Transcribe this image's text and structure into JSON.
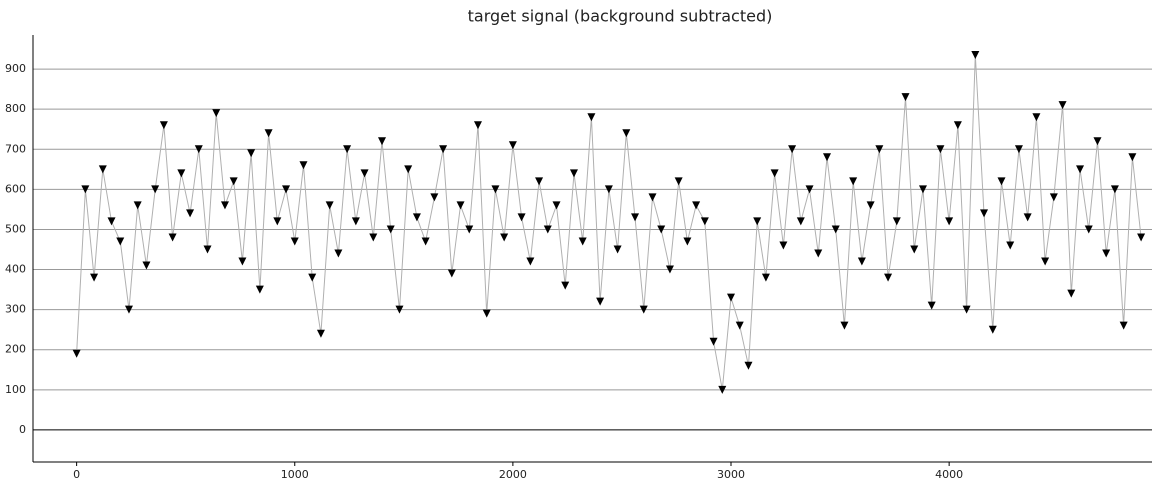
{
  "chart_data": {
    "type": "line",
    "title": "target signal (background subtracted)",
    "x": [
      0,
      40,
      80,
      120,
      160,
      200,
      240,
      280,
      320,
      360,
      400,
      440,
      480,
      520,
      560,
      600,
      640,
      680,
      720,
      760,
      800,
      840,
      880,
      920,
      960,
      1000,
      1040,
      1080,
      1120,
      1160,
      1200,
      1240,
      1280,
      1320,
      1360,
      1400,
      1440,
      1480,
      1520,
      1560,
      1600,
      1640,
      1680,
      1720,
      1760,
      1800,
      1840,
      1880,
      1920,
      1960,
      2000,
      2040,
      2080,
      2120,
      2160,
      2200,
      2240,
      2280,
      2320,
      2360,
      2400,
      2440,
      2480,
      2520,
      2560,
      2600,
      2640,
      2680,
      2720,
      2760,
      2800,
      2840,
      2880,
      2920,
      2960,
      3000,
      3040,
      3080,
      3120,
      3160,
      3200,
      3240,
      3280,
      3320,
      3360,
      3400,
      3440,
      3480,
      3520,
      3560,
      3600,
      3640,
      3680,
      3720,
      3760,
      3800,
      3840,
      3880,
      3920,
      3960,
      4000,
      4040,
      4080,
      4120,
      4160,
      4200,
      4240,
      4280,
      4320,
      4360,
      4400,
      4440,
      4480,
      4520,
      4560,
      4600,
      4640,
      4680,
      4720,
      4760,
      4800,
      4840,
      4880
    ],
    "series": [
      {
        "color": "#000000",
        "values": [
          190,
          600,
          380,
          650,
          520,
          470,
          300,
          560,
          410,
          600,
          760,
          480,
          640,
          540,
          700,
          450,
          790,
          560,
          620,
          420,
          690,
          350,
          740,
          520,
          600,
          470,
          660,
          380,
          240,
          560,
          440,
          700,
          520,
          640,
          480,
          720,
          500,
          300,
          650,
          530,
          470,
          580,
          700,
          390,
          560,
          500,
          760,
          290,
          600,
          480,
          710,
          530,
          420,
          620,
          500,
          560,
          360,
          640,
          470,
          780,
          320,
          600,
          450,
          740,
          530,
          300,
          580,
          500,
          400,
          620,
          470,
          560,
          520,
          220,
          100,
          330,
          260,
          160,
          520,
          380,
          640,
          460,
          700,
          520,
          600,
          440,
          680,
          500,
          260,
          620,
          420,
          560,
          700,
          380,
          520,
          830,
          450,
          600,
          310,
          700,
          520,
          760,
          300,
          935,
          540,
          250,
          620,
          460,
          700,
          530,
          780,
          420,
          580,
          810,
          340,
          650,
          500,
          720,
          440,
          600,
          260,
          680,
          480
        ]
      }
    ],
    "line_color": "#b0b0b0",
    "xlim": [
      -200,
      4930
    ],
    "xticks": [
      0,
      1000,
      2000,
      3000,
      4000
    ],
    "ylim": [
      -80,
      985
    ],
    "yticks": [
      0,
      100,
      200,
      300,
      400,
      500,
      600,
      700,
      800,
      900
    ],
    "grid": true
  }
}
